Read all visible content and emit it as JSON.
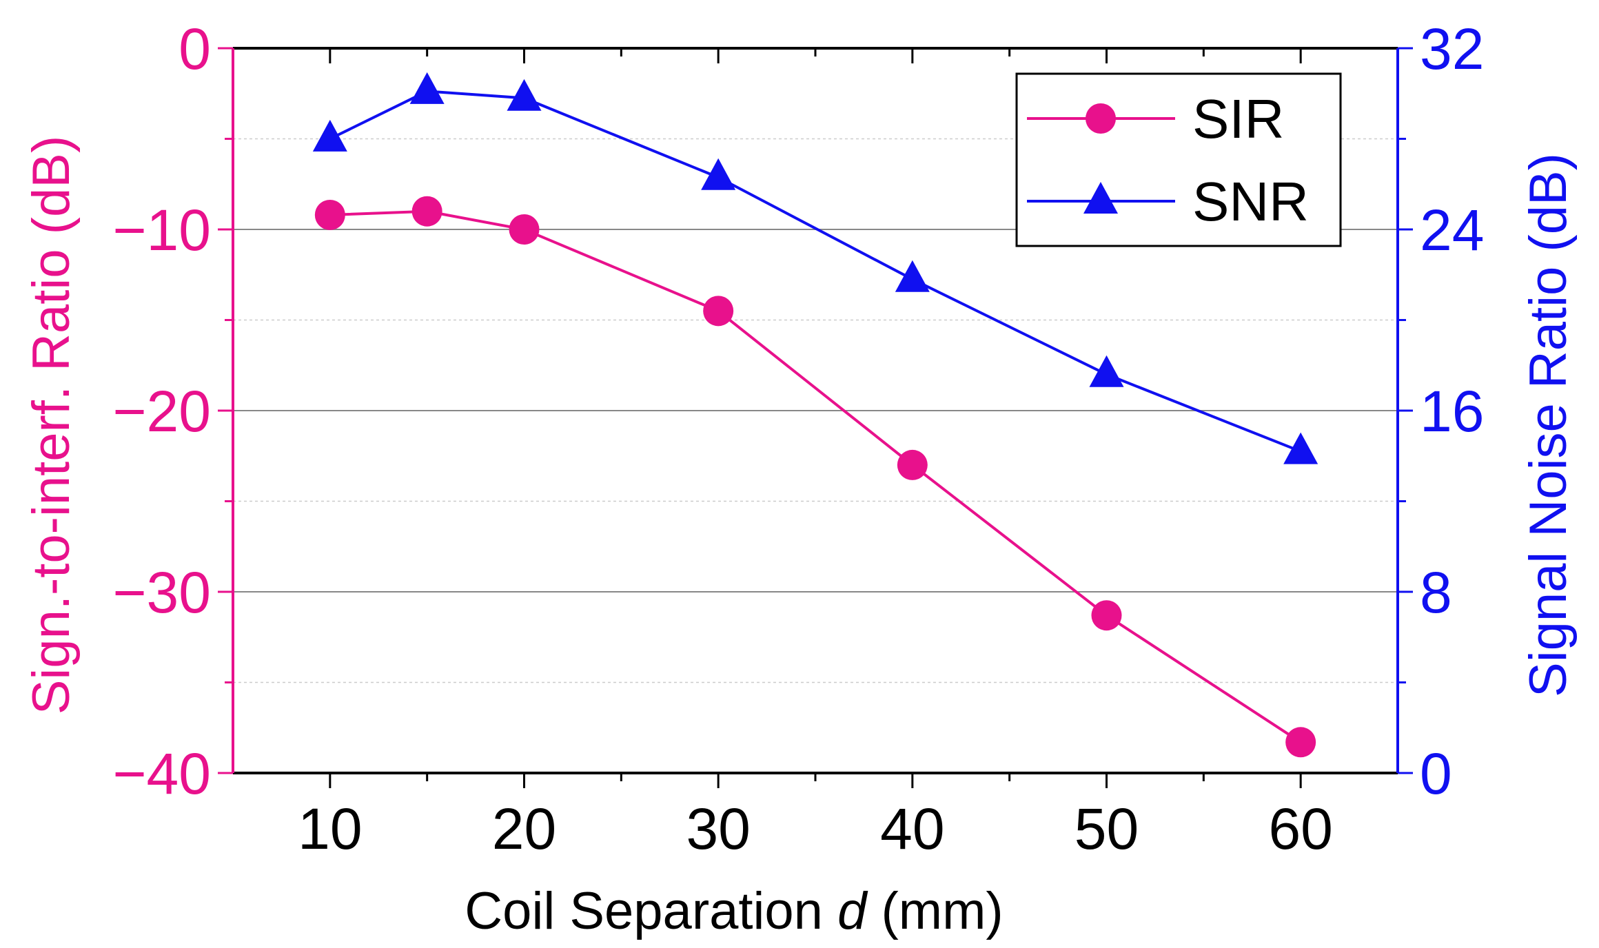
{
  "chart_data": {
    "type": "line",
    "xlabel_prefix": "Coil Separation ",
    "xlabel_var": "d",
    "xlabel_suffix": " (mm)",
    "ylabel_left": "Sign.-to-interf. Ratio (dB)",
    "ylabel_right": "Signal Noise Ratio (dB)",
    "xlim": [
      5,
      65
    ],
    "ylim_left": [
      -40,
      0
    ],
    "ylim_right": [
      0,
      32
    ],
    "x_ticks": [
      10,
      20,
      30,
      40,
      50,
      60
    ],
    "y_left_ticks": [
      0,
      -10,
      -20,
      -30,
      -40
    ],
    "y_left_tick_labels": [
      "0",
      "−10",
      "−20",
      "−30",
      "−40"
    ],
    "y_right_ticks": [
      32,
      24,
      16,
      8,
      0
    ],
    "grid": true,
    "legend_position": "top-right",
    "colors": {
      "SIR": "#e8118c",
      "SNR": "#1010f0",
      "axis": "#000000",
      "grid_major": "#888888",
      "grid_minor": "#cccccc"
    },
    "series": [
      {
        "name": "SIR",
        "axis": "left",
        "marker": "circle",
        "x": [
          10,
          15,
          20,
          30,
          40,
          50,
          60
        ],
        "values": [
          -9.2,
          -9.0,
          -10.0,
          -14.5,
          -23.0,
          -31.3,
          -38.3
        ]
      },
      {
        "name": "SNR",
        "axis": "right",
        "marker": "triangle",
        "x": [
          10,
          15,
          20,
          30,
          40,
          50,
          60
        ],
        "values": [
          28.0,
          30.1,
          29.8,
          26.3,
          21.8,
          17.6,
          14.2
        ]
      }
    ]
  }
}
